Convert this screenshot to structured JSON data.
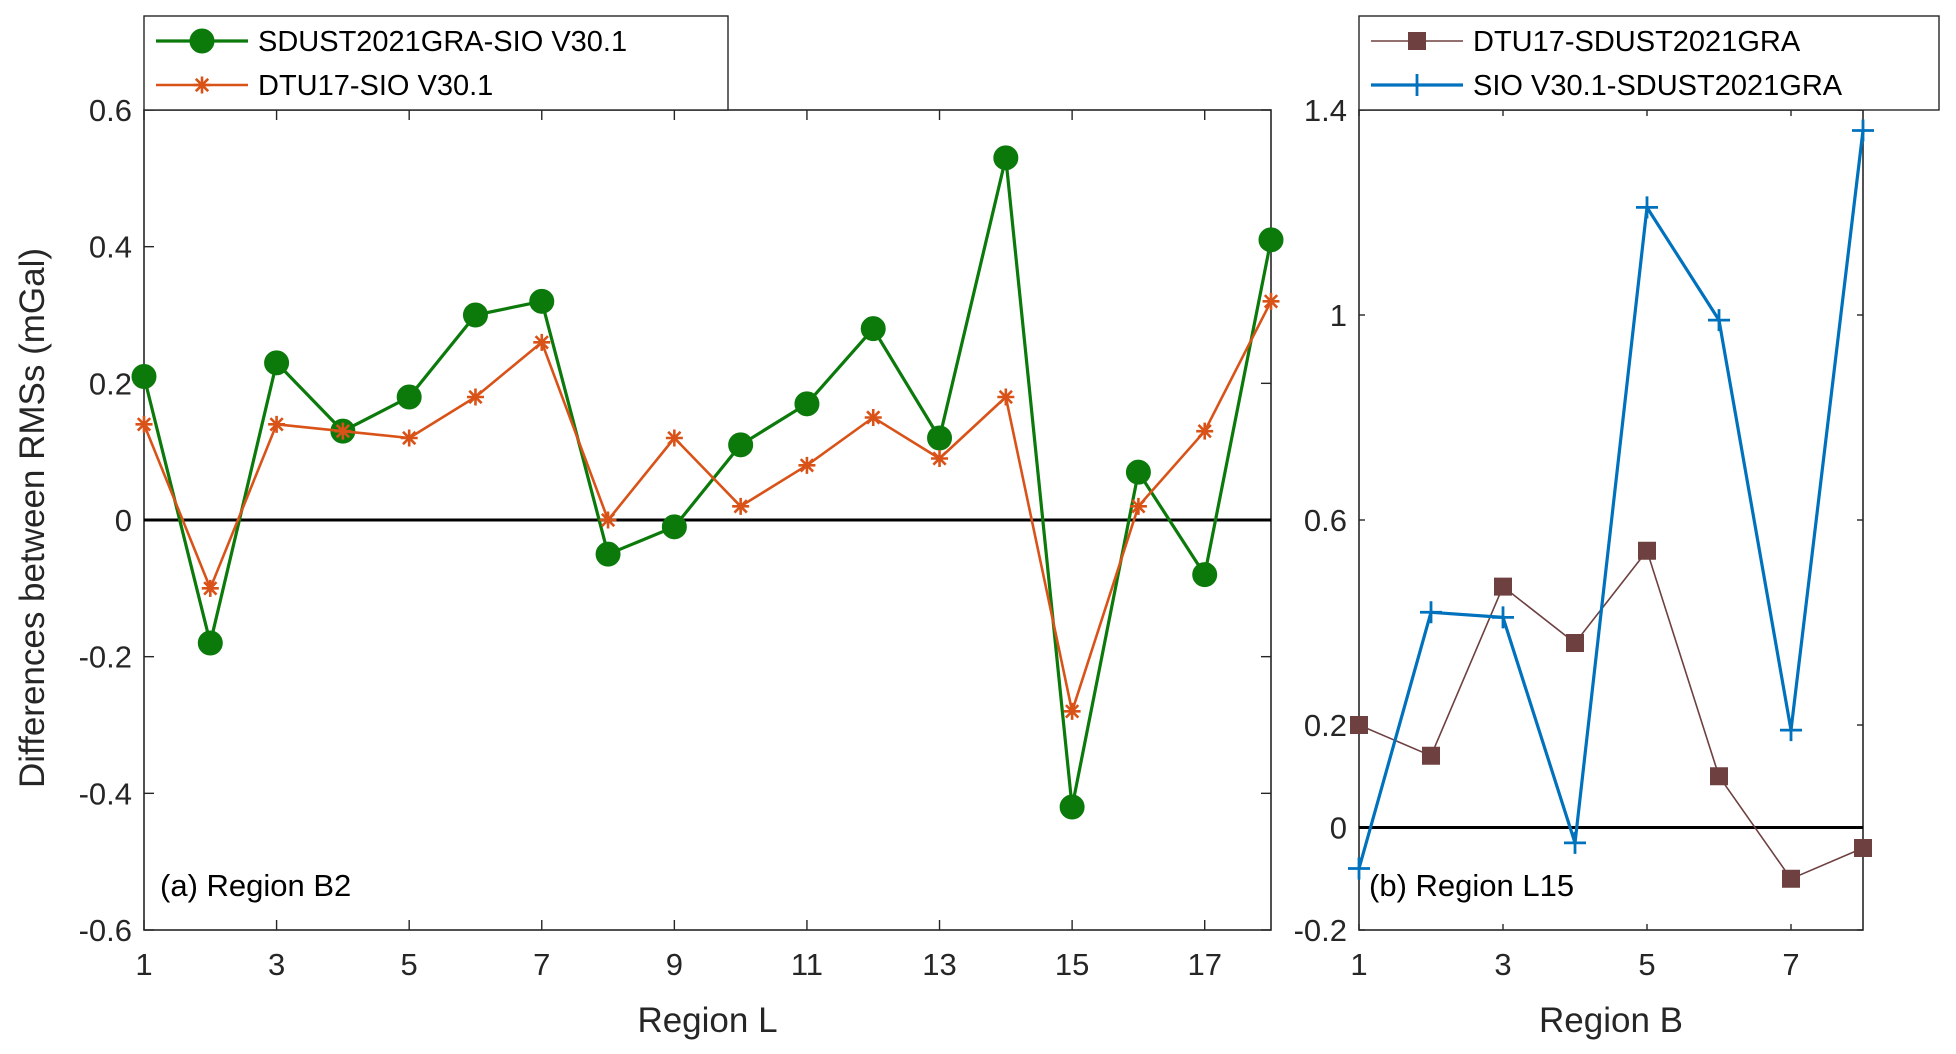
{
  "ylabel": "Differences between RMSs (mGal)",
  "colors": {
    "green": "#0b7a0b",
    "orange": "#d95319",
    "brown": "#6e4040",
    "blue": "#0072bd",
    "axis": "#262626",
    "zero_line": "#000000"
  },
  "chart_data": [
    {
      "type": "line",
      "annotation": "(a) Region B2",
      "xlabel": "Region L",
      "ylabel": "Differences between RMSs (mGal)",
      "xlim": [
        1,
        18
      ],
      "ylim": [
        -0.6,
        0.6
      ],
      "xticks": [
        1,
        3,
        5,
        7,
        9,
        11,
        13,
        15,
        17
      ],
      "xtick_labels": [
        "1",
        "3",
        "5",
        "7",
        "9",
        "11",
        "13",
        "15",
        "17"
      ],
      "yticks": [
        -0.6,
        -0.4,
        -0.2,
        0,
        0.2,
        0.4,
        0.6
      ],
      "ytick_labels": [
        "-0.6",
        "-0.4",
        "-0.2",
        "0",
        "0.2",
        "0.4",
        "0.6"
      ],
      "legend_position": "top-left outside",
      "reference_line_y": 0,
      "x": [
        1,
        2,
        3,
        4,
        5,
        6,
        7,
        8,
        9,
        10,
        11,
        12,
        13,
        14,
        15,
        16,
        17,
        18
      ],
      "series": [
        {
          "name": "SDUST2021GRA-SIO V30.1",
          "marker": "circle",
          "color": "#0b7a0b",
          "values": [
            0.21,
            -0.18,
            0.23,
            0.13,
            0.18,
            0.3,
            0.32,
            -0.05,
            -0.01,
            0.11,
            0.17,
            0.28,
            0.12,
            0.53,
            -0.42,
            0.07,
            -0.08,
            0.41
          ]
        },
        {
          "name": "DTU17-SIO V30.1",
          "marker": "asterisk",
          "color": "#d95319",
          "values": [
            0.14,
            -0.1,
            0.14,
            0.13,
            0.12,
            0.18,
            0.26,
            0.0,
            0.12,
            0.02,
            0.08,
            0.15,
            0.09,
            0.18,
            -0.28,
            0.02,
            0.13,
            0.32
          ]
        }
      ]
    },
    {
      "type": "line",
      "annotation": "(b) Region L15",
      "xlabel": "Region B",
      "xlim": [
        1,
        8
      ],
      "ylim": [
        -0.2,
        1.4
      ],
      "xticks": [
        1,
        3,
        5,
        7
      ],
      "xtick_labels": [
        "1",
        "3",
        "5",
        "7"
      ],
      "yticks": [
        -0.2,
        0,
        0.2,
        0.6,
        1,
        1.4
      ],
      "ytick_labels": [
        "-0.2",
        "0",
        "0.2",
        "0.6",
        "1",
        "1.4"
      ],
      "legend_position": "top outside",
      "reference_line_y": 0,
      "x": [
        1,
        2,
        3,
        4,
        5,
        6,
        7,
        8
      ],
      "series": [
        {
          "name": "DTU17-SDUST2021GRA",
          "marker": "square",
          "color": "#6e4040",
          "values": [
            0.2,
            0.14,
            0.47,
            0.36,
            0.54,
            0.1,
            -0.1,
            -0.04
          ]
        },
        {
          "name": "SIO V30.1-SDUST2021GRA",
          "marker": "plus",
          "color": "#0072bd",
          "values": [
            -0.08,
            0.42,
            0.41,
            -0.03,
            1.21,
            0.99,
            0.19,
            1.36
          ]
        }
      ]
    }
  ]
}
